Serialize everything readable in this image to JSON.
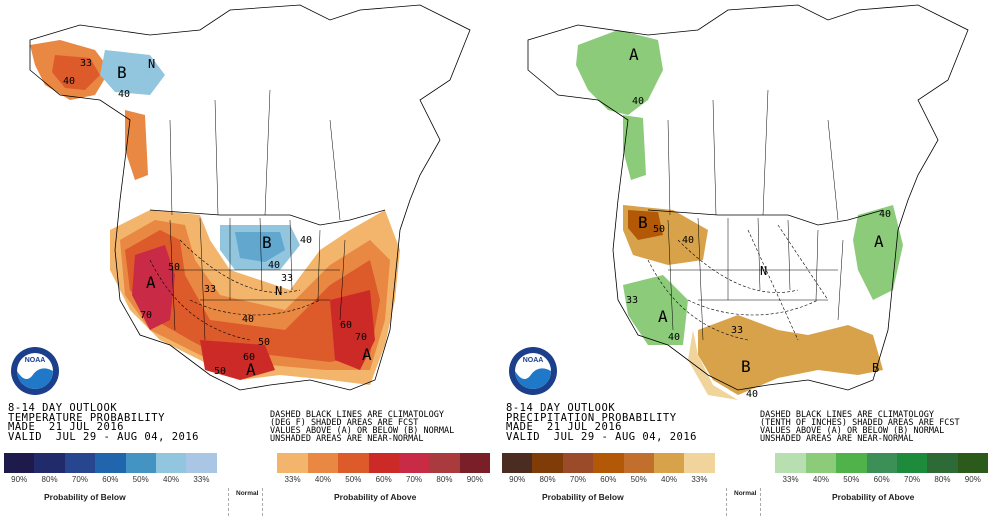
{
  "panels": {
    "temperature": {
      "title": "8-14 DAY OUTLOOK",
      "subtitle": "TEMPERATURE PROBABILITY",
      "made": "MADE  21 JUL 2016",
      "valid": "VALID  JUL 29 - AUG 04, 2016",
      "note": [
        "DASHED BLACK LINES ARE CLIMATOLOGY",
        "(DEG F) SHADED AREAS ARE FCST",
        "VALUES ABOVE (A) OR BELOW (B) NORMAL",
        "UNSHADED AREAS ARE NEAR-NORMAL"
      ],
      "legend_colors": [
        "#1e1a4b",
        "#212a6b",
        "#28458f",
        "#2166ac",
        "#4393c3",
        "#92c5de",
        "#a9c6e5",
        "#ffffff",
        "#ffffff",
        "#f2b56b",
        "#e88843",
        "#dd5a2b",
        "#cc2a27",
        "#c92a45",
        "#a93a3d",
        "#7a1f28"
      ],
      "legend_ticks": [
        "90%",
        "80%",
        "70%",
        "60%",
        "50%",
        "40%",
        "33%",
        "",
        "",
        "33%",
        "40%",
        "50%",
        "60%",
        "70%",
        "80%",
        "90%"
      ],
      "caption_below": "Probability of Below",
      "caption_normal": "Normal",
      "caption_above": "Probability of Above",
      "labels": {
        "alaska_b": "B",
        "alaska_n": "N",
        "west_a": "A",
        "gulf_a": "A",
        "east_a": "A",
        "plains_b": "B",
        "plains_n": "N",
        "c50a": "50",
        "c60a": "60",
        "c70a": "70",
        "c50b": "50",
        "c40a": "40",
        "c33a": "33",
        "c40b": "40",
        "c40c": "40",
        "c33b": "33",
        "c60b": "60",
        "c50c": "50",
        "c40d": "40",
        "c40e": "40",
        "c33c": "33",
        "c70b": "70"
      }
    },
    "precipitation": {
      "title": "8-14 DAY OUTLOOK",
      "subtitle": "PRECIPITATION PROBABILITY",
      "made": "MADE  21 JUL 2016",
      "valid": "VALID  JUL 29 - AUG 04, 2016",
      "note": [
        "DASHED BLACK LINES ARE CLIMATOLOGY",
        "(TENTH OF INCHES) SHADED AREAS ARE FCST",
        "VALUES ABOVE (A) OR BELOW (B) NORMAL",
        "UNSHADED AREAS ARE NEAR-NORMAL"
      ],
      "legend_colors": [
        "#4a2c21",
        "#7f3b08",
        "#9c4b2a",
        "#b35806",
        "#c26e2c",
        "#d8a24a",
        "#f1d49c",
        "#ffffff",
        "#ffffff",
        "#b8dfb0",
        "#8ccb7a",
        "#4fb24a",
        "#3c8f56",
        "#1e8a3c",
        "#2d6a35",
        "#2c5a1a"
      ],
      "legend_ticks": [
        "90%",
        "80%",
        "70%",
        "60%",
        "50%",
        "40%",
        "33%",
        "",
        "",
        "33%",
        "40%",
        "50%",
        "60%",
        "70%",
        "80%",
        "90%"
      ],
      "caption_below": "Probability of Below",
      "caption_normal": "Normal",
      "caption_above": "Probability of Above",
      "labels": {
        "alaska_a": "A",
        "nw_b": "B",
        "sw_a": "A",
        "ne_a": "A",
        "texas_b": "B",
        "se_b": "B",
        "center_n": "N",
        "c40a": "40",
        "c50a": "50",
        "c40b": "40",
        "c33a": "33",
        "c40c": "40",
        "c40d": "40",
        "c33b": "33",
        "c40e": "40"
      }
    }
  },
  "logo": {
    "text": "NOAA"
  }
}
